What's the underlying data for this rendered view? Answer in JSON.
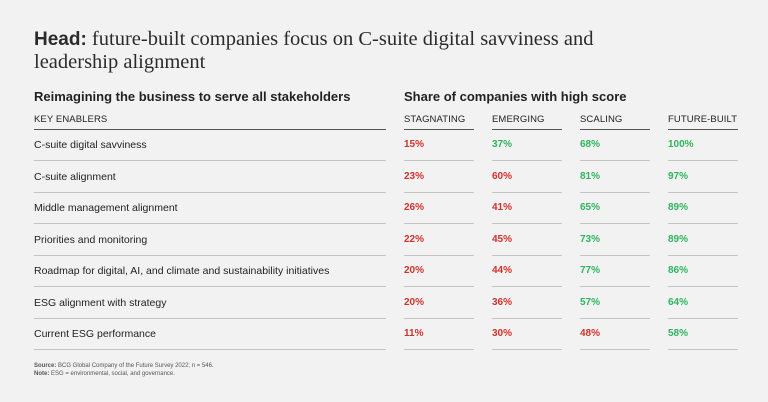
{
  "header": {
    "prefix": "Head:",
    "title": "future-built companies focus on C-suite digital savviness and leadership alignment"
  },
  "left_section": "Reimagining the business to serve all stakeholders",
  "right_section": "Share of companies with high score",
  "key_enablers_label": "KEY ENABLERS",
  "colors": {
    "low": "#d0312d",
    "high": "#2db55d"
  },
  "chart_data": {
    "type": "table",
    "title": "Share of companies with high score",
    "columns": [
      "STAGNATING",
      "EMERGING",
      "SCALING",
      "FUTURE-BUILT"
    ],
    "rows": [
      {
        "enabler": "C-suite digital savviness",
        "values": [
          "15%",
          "37%",
          "68%",
          "100%"
        ],
        "status": [
          "low",
          "high",
          "high",
          "high"
        ]
      },
      {
        "enabler": "C-suite alignment",
        "values": [
          "23%",
          "60%",
          "81%",
          "97%"
        ],
        "status": [
          "low",
          "low",
          "high",
          "high"
        ]
      },
      {
        "enabler": "Middle management alignment",
        "values": [
          "26%",
          "41%",
          "65%",
          "89%"
        ],
        "status": [
          "low",
          "low",
          "high",
          "high"
        ]
      },
      {
        "enabler": "Priorities and monitoring",
        "values": [
          "22%",
          "45%",
          "73%",
          "89%"
        ],
        "status": [
          "low",
          "low",
          "high",
          "high"
        ]
      },
      {
        "enabler": "Roadmap for digital, AI, and climate and sustainability initiatives",
        "values": [
          "20%",
          "44%",
          "77%",
          "86%"
        ],
        "status": [
          "low",
          "low",
          "high",
          "high"
        ]
      },
      {
        "enabler": "ESG alignment with strategy",
        "values": [
          "20%",
          "36%",
          "57%",
          "64%"
        ],
        "status": [
          "low",
          "low",
          "high",
          "high"
        ]
      },
      {
        "enabler": "Current ESG performance",
        "values": [
          "11%",
          "30%",
          "48%",
          "58%"
        ],
        "status": [
          "low",
          "low",
          "low",
          "high"
        ]
      }
    ]
  },
  "footnote": {
    "source_label": "Source:",
    "source_text": "BCG Global Company of the Future Survey 2022; n = 546.",
    "note_label": "Note:",
    "note_text": "ESG = environmental, social, and governance."
  }
}
